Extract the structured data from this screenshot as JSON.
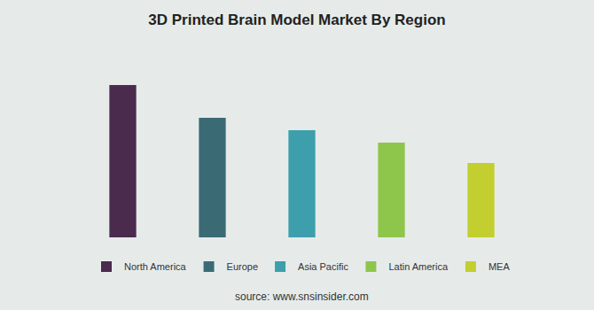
{
  "chart_data": {
    "type": "bar",
    "title": "3D Printed Brain Model Market By Region",
    "categories": [
      "North America",
      "Europe",
      "Asia Pacific",
      "Latin America",
      "MEA"
    ],
    "values": [
      172,
      135,
      121,
      107,
      84
    ],
    "colors": [
      "#4a2b4d",
      "#3a6b75",
      "#3d9fac",
      "#8ec64c",
      "#c2cf2e"
    ],
    "ylim": [
      0,
      190
    ],
    "grid": false,
    "legend": "bottom",
    "tick_labels": false,
    "source": "source: www.snsinsider.com"
  }
}
